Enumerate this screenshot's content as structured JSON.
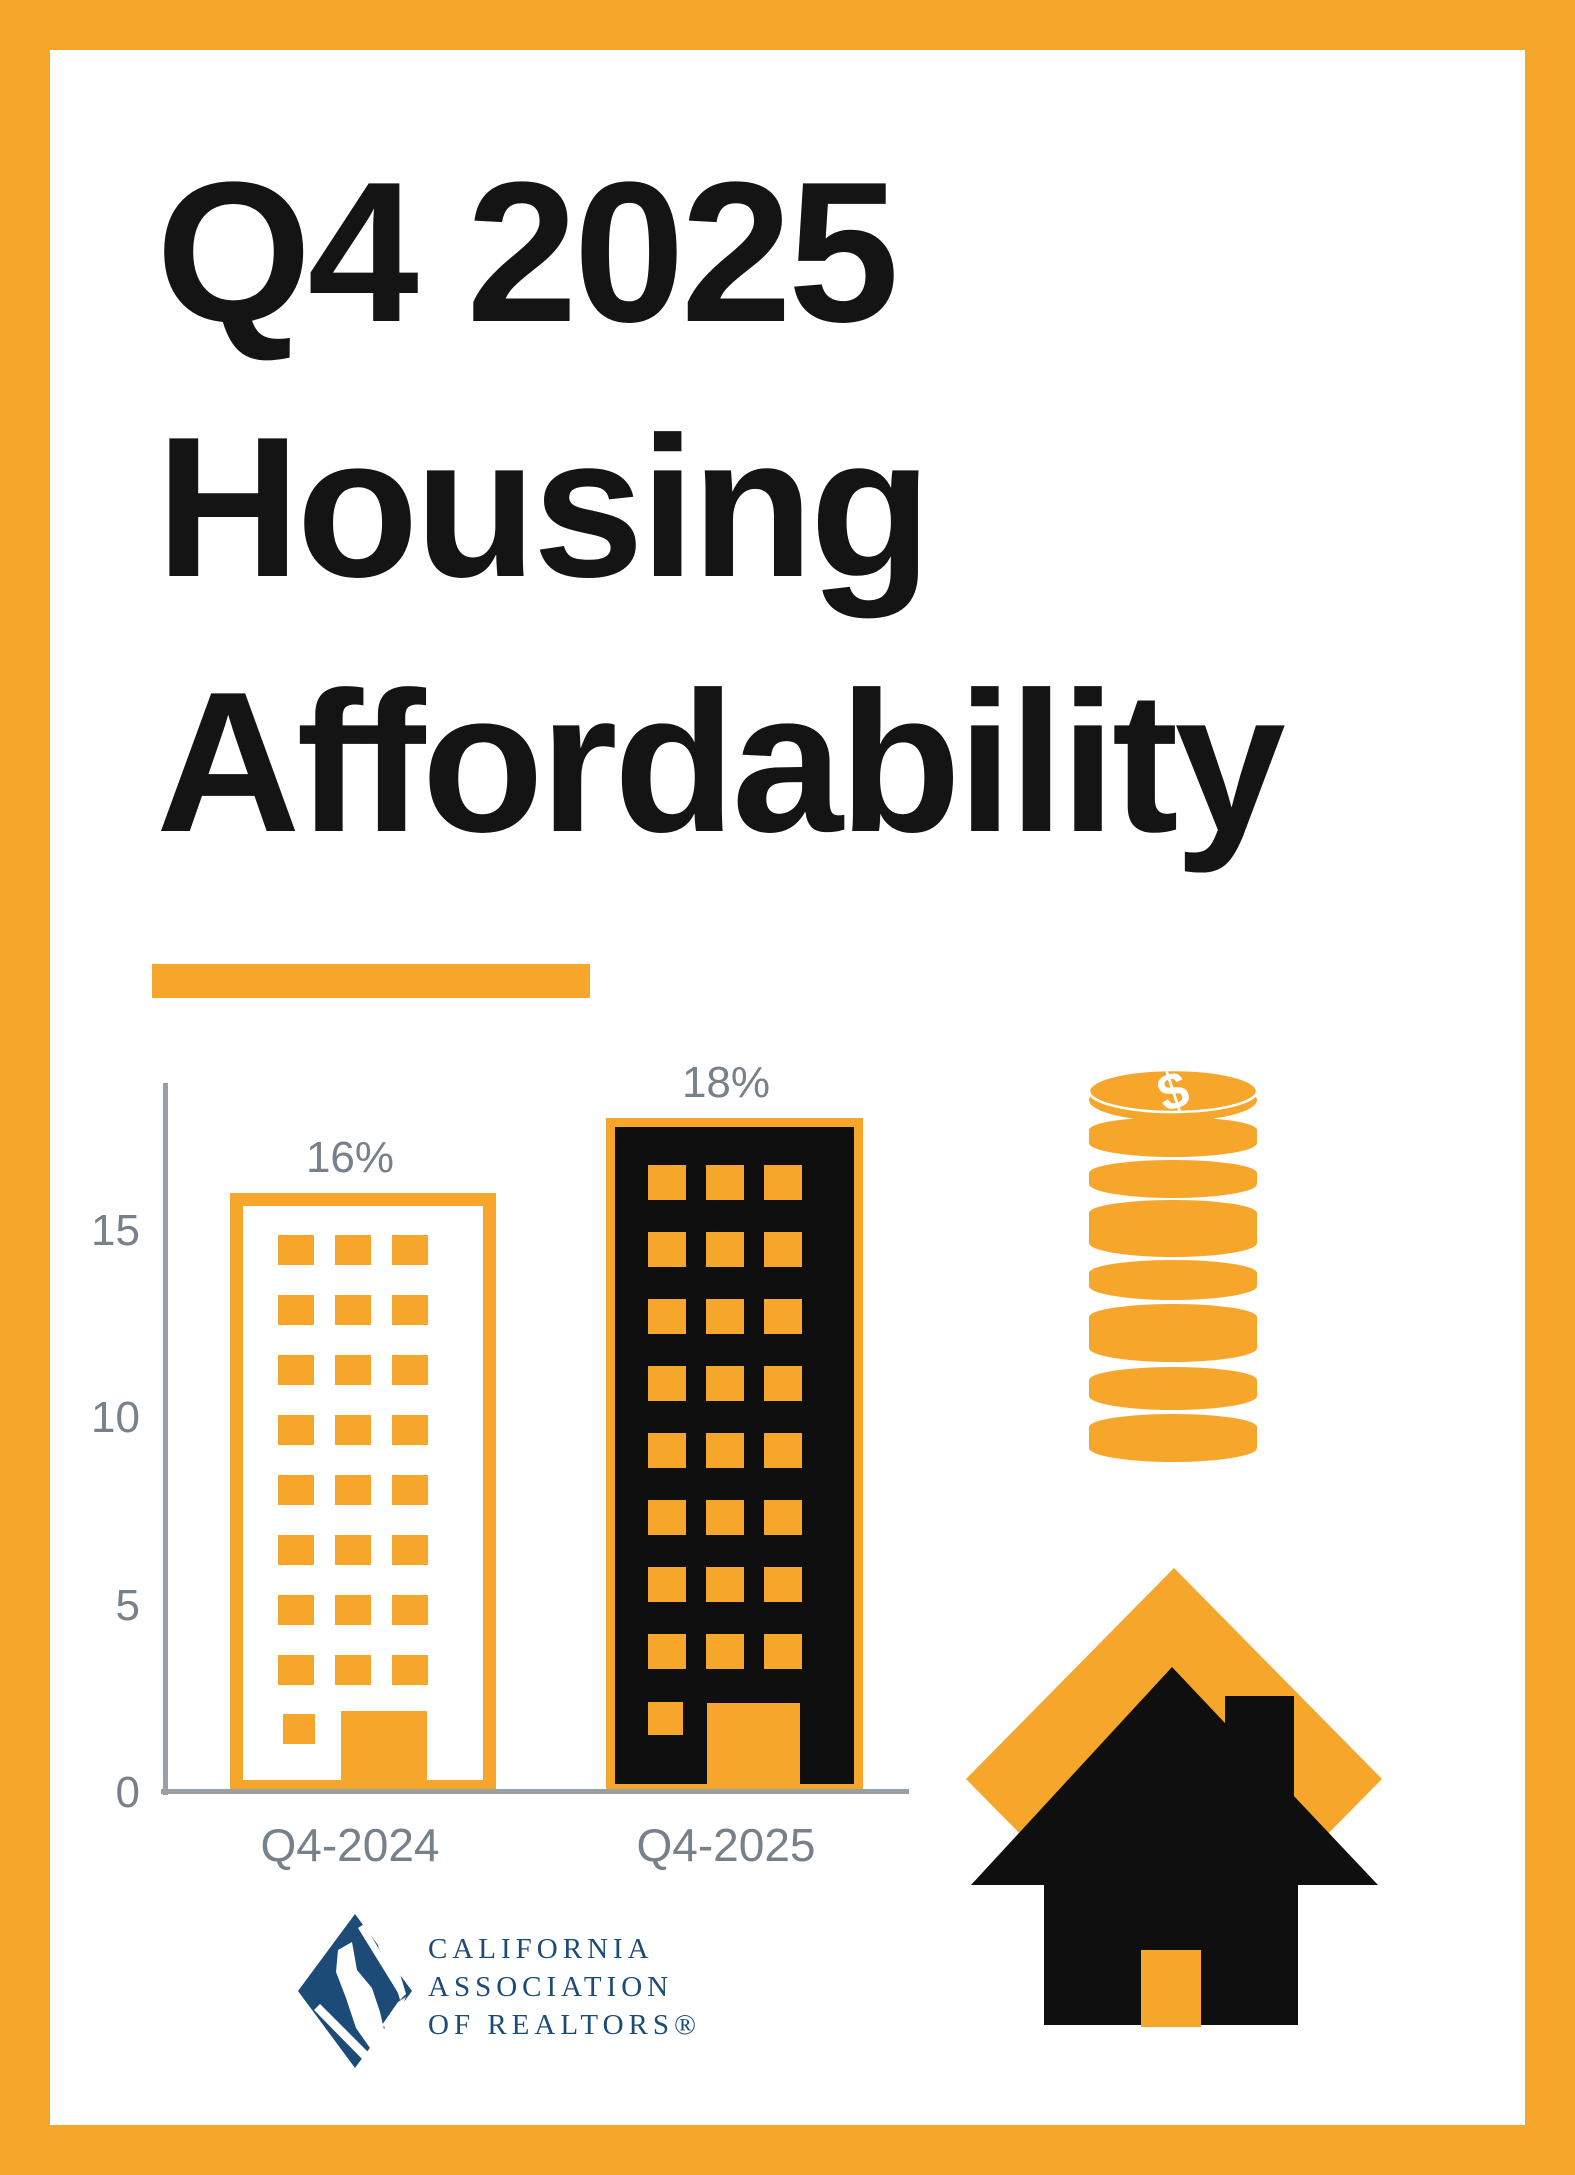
{
  "page": {
    "background": "#FFFFFF",
    "frame_color": "#F5A62B",
    "title_lines": [
      "Q4 2025",
      "Housing",
      "Affordability"
    ]
  },
  "chart_data": {
    "type": "bar",
    "title": "",
    "xlabel": "",
    "ylabel": "",
    "categories": [
      "Q4-2024",
      "Q4-2025"
    ],
    "values": [
      16,
      18
    ],
    "value_labels": [
      "16%",
      "18%"
    ],
    "yticks": [
      0,
      5,
      10,
      15
    ],
    "ylim": [
      0,
      19
    ],
    "grid": false,
    "legend": false,
    "bar_styles": [
      {
        "fill": "#FFFFFF",
        "outline": "#F5A62B",
        "motif": "building-with-windows"
      },
      {
        "fill": "#0F0F10",
        "outline": "#F5A62B",
        "motif": "building-with-windows"
      }
    ],
    "label_color": "#76818B",
    "axis_color": "#97A0A7"
  },
  "icons": {
    "coin_stack": {
      "symbol": "$",
      "color": "#F5A62B"
    },
    "house": {
      "body_color": "#0F0F10",
      "diamond_color": "#F5A62B",
      "door_color": "#F5A62B"
    }
  },
  "logo": {
    "lines": [
      "CALIFORNIA",
      "ASSOCIATION",
      "OF REALTORS®"
    ],
    "color": "#1C4B77"
  }
}
